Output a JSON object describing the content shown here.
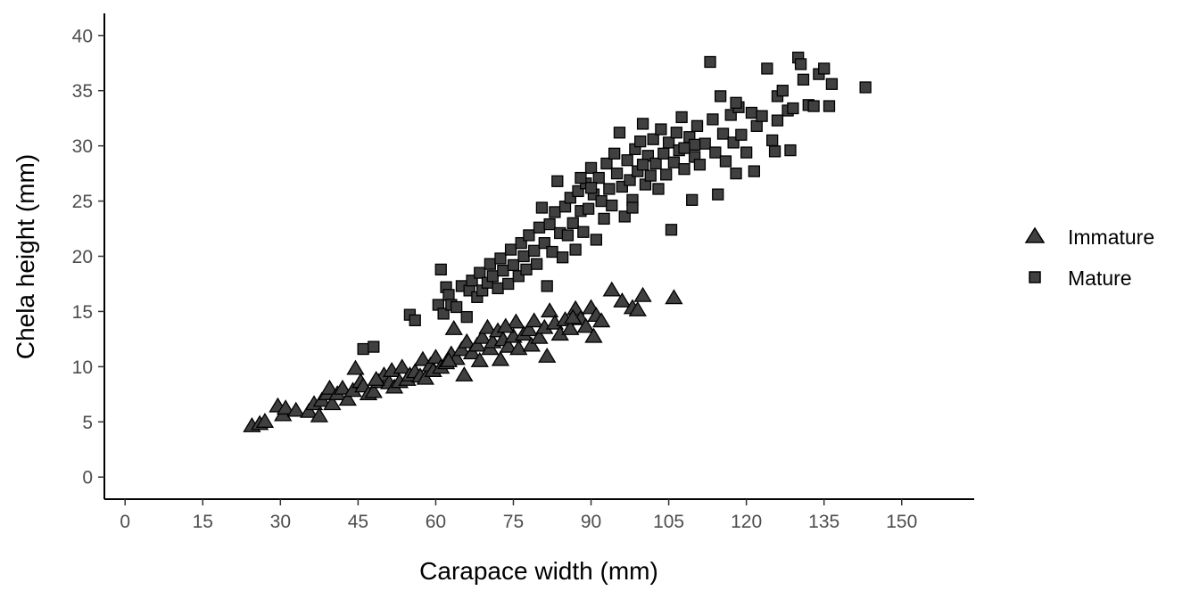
{
  "chart_data": {
    "type": "scatter",
    "title": "",
    "xlabel": "Carapace width (mm)",
    "ylabel": "Chela height (mm)",
    "xlim": [
      -4,
      164
    ],
    "ylim": [
      -2,
      42
    ],
    "x_ticks": [
      "0",
      "15",
      "30",
      "45",
      "60",
      "75",
      "90",
      "105",
      "120",
      "135",
      "150"
    ],
    "y_ticks": [
      "0",
      "5",
      "10",
      "15",
      "20",
      "25",
      "30",
      "35",
      "40"
    ],
    "grid": false,
    "legend_position": "right",
    "colors": {
      "fill": "#404040",
      "stroke": "#000000"
    },
    "series": [
      {
        "name": "Immature",
        "marker": "triangle",
        "points": [
          [
            24.5,
            4.6
          ],
          [
            26,
            4.8
          ],
          [
            27,
            5
          ],
          [
            29.5,
            6.4
          ],
          [
            30.5,
            5.6
          ],
          [
            31,
            6.2
          ],
          [
            33,
            6
          ],
          [
            35.5,
            5.9
          ],
          [
            36.5,
            6.6
          ],
          [
            37.5,
            5.5
          ],
          [
            38,
            6.9
          ],
          [
            39,
            7.5
          ],
          [
            39.5,
            8
          ],
          [
            40,
            6.6
          ],
          [
            41,
            7.5
          ],
          [
            42,
            8
          ],
          [
            43,
            7
          ],
          [
            44,
            7.8
          ],
          [
            44.5,
            9.8
          ],
          [
            45.5,
            8.6
          ],
          [
            46,
            8.2
          ],
          [
            47,
            7.5
          ],
          [
            48,
            7.7
          ],
          [
            49,
            8.6
          ],
          [
            50,
            9.2
          ],
          [
            51,
            8.5
          ],
          [
            51.5,
            9.6
          ],
          [
            52,
            8.1
          ],
          [
            53,
            8.6
          ],
          [
            53.5,
            9.9
          ],
          [
            54.5,
            8.8
          ],
          [
            55,
            9.2
          ],
          [
            56,
            9.5
          ],
          [
            57,
            9.1
          ],
          [
            57.5,
            10.6
          ],
          [
            58,
            8.9
          ],
          [
            59,
            10.1
          ],
          [
            59.5,
            9.6
          ],
          [
            60,
            10.8
          ],
          [
            61,
            9.9
          ],
          [
            62,
            10.3
          ],
          [
            63,
            11.1
          ],
          [
            63.5,
            13.4
          ],
          [
            64,
            10.7
          ],
          [
            65,
            11.5
          ],
          [
            65.5,
            9.2
          ],
          [
            66,
            12.2
          ],
          [
            67,
            11.2
          ],
          [
            68,
            11.9
          ],
          [
            68.5,
            10.5
          ],
          [
            69,
            12.6
          ],
          [
            70,
            13.5
          ],
          [
            70.5,
            11.6
          ],
          [
            71,
            12.2
          ],
          [
            72,
            13.2
          ],
          [
            72.5,
            10.6
          ],
          [
            73,
            12.4
          ],
          [
            74,
            11.8
          ],
          [
            75,
            12.7
          ],
          [
            75.5,
            14
          ],
          [
            76,
            11.6
          ],
          [
            77,
            12.9
          ],
          [
            78,
            13.3
          ],
          [
            78.5,
            11.9
          ],
          [
            79,
            14.1
          ],
          [
            80,
            12.6
          ],
          [
            81,
            13.5
          ],
          [
            81.5,
            10.9
          ],
          [
            82,
            15
          ],
          [
            83,
            13.9
          ],
          [
            84,
            12.9
          ],
          [
            85,
            14.2
          ],
          [
            86,
            13.4
          ],
          [
            87,
            15.2
          ],
          [
            88,
            14.3
          ],
          [
            89,
            13.6
          ],
          [
            90,
            15.3
          ],
          [
            90.5,
            12.7
          ],
          [
            91,
            14.6
          ],
          [
            92,
            14.1
          ],
          [
            94,
            16.9
          ],
          [
            96,
            15.9
          ],
          [
            98,
            15.3
          ],
          [
            99,
            15.1
          ],
          [
            100,
            16.4
          ],
          [
            106,
            16.2
          ],
          [
            48.5,
            8.8
          ],
          [
            62.5,
            10.5
          ],
          [
            73.5,
            13.6
          ],
          [
            86.5,
            14.4
          ]
        ]
      },
      {
        "name": "Mature",
        "marker": "square",
        "points": [
          [
            46,
            11.6
          ],
          [
            48,
            11.8
          ],
          [
            55,
            14.7
          ],
          [
            56,
            14.2
          ],
          [
            60.5,
            15.6
          ],
          [
            61,
            18.8
          ],
          [
            61.5,
            14.8
          ],
          [
            62,
            17.2
          ],
          [
            62.5,
            16.5
          ],
          [
            63,
            15.6
          ],
          [
            64,
            15.4
          ],
          [
            65,
            17.3
          ],
          [
            66,
            14.5
          ],
          [
            66.5,
            16.9
          ],
          [
            67,
            17.8
          ],
          [
            68,
            16.3
          ],
          [
            68.5,
            18.5
          ],
          [
            69,
            16.9
          ],
          [
            70,
            17.6
          ],
          [
            70.5,
            19.3
          ],
          [
            71,
            18.2
          ],
          [
            72,
            17.1
          ],
          [
            72.5,
            19.8
          ],
          [
            73,
            18.7
          ],
          [
            74,
            17.5
          ],
          [
            74.5,
            20.6
          ],
          [
            75,
            19.2
          ],
          [
            76,
            18.2
          ],
          [
            76.5,
            21.2
          ],
          [
            77,
            20
          ],
          [
            77.5,
            18.8
          ],
          [
            78,
            21.9
          ],
          [
            79,
            20.5
          ],
          [
            79.5,
            19.3
          ],
          [
            80,
            22.6
          ],
          [
            80.5,
            24.4
          ],
          [
            81,
            21.2
          ],
          [
            81.5,
            17.3
          ],
          [
            82,
            22.9
          ],
          [
            82.5,
            20.4
          ],
          [
            83,
            24
          ],
          [
            83.5,
            26.8
          ],
          [
            84,
            22.1
          ],
          [
            84.5,
            19.9
          ],
          [
            85,
            24.5
          ],
          [
            85.5,
            21.9
          ],
          [
            86,
            25.3
          ],
          [
            86.5,
            23
          ],
          [
            87,
            20.6
          ],
          [
            87.5,
            25.9
          ],
          [
            88,
            24.1
          ],
          [
            88.5,
            22.2
          ],
          [
            89,
            26.6
          ],
          [
            89.5,
            24.3
          ],
          [
            90,
            28
          ],
          [
            90.5,
            25.6
          ],
          [
            91,
            21.5
          ],
          [
            91.5,
            27.1
          ],
          [
            92,
            25
          ],
          [
            92.5,
            23.4
          ],
          [
            93,
            28.4
          ],
          [
            93.5,
            26.1
          ],
          [
            94,
            24.6
          ],
          [
            94.5,
            29.3
          ],
          [
            95,
            27.5
          ],
          [
            95.5,
            31.2
          ],
          [
            96,
            26.3
          ],
          [
            96.5,
            23.6
          ],
          [
            97,
            28.7
          ],
          [
            97.5,
            26.9
          ],
          [
            98,
            25.1
          ],
          [
            98.5,
            29.7
          ],
          [
            99,
            27.7
          ],
          [
            99.5,
            30.4
          ],
          [
            100,
            32
          ],
          [
            100.5,
            26.5
          ],
          [
            101,
            29.1
          ],
          [
            101.5,
            27.3
          ],
          [
            102,
            30.6
          ],
          [
            102.5,
            28.4
          ],
          [
            103,
            26.1
          ],
          [
            103.5,
            31.5
          ],
          [
            104,
            29.3
          ],
          [
            104.5,
            27.4
          ],
          [
            105,
            30.3
          ],
          [
            105.5,
            22.4
          ],
          [
            106,
            28.5
          ],
          [
            106.5,
            31.2
          ],
          [
            107,
            29.6
          ],
          [
            107.5,
            32.6
          ],
          [
            108,
            27.9
          ],
          [
            109,
            30.8
          ],
          [
            109.5,
            25.1
          ],
          [
            110,
            29
          ],
          [
            110.5,
            31.8
          ],
          [
            111,
            28.3
          ],
          [
            112,
            30.2
          ],
          [
            113,
            37.6
          ],
          [
            113.5,
            32.4
          ],
          [
            114,
            29.4
          ],
          [
            114.5,
            25.6
          ],
          [
            115,
            34.5
          ],
          [
            115.5,
            31.1
          ],
          [
            116,
            28.6
          ],
          [
            117,
            32.8
          ],
          [
            117.5,
            30.3
          ],
          [
            118,
            27.5
          ],
          [
            118.5,
            33.5
          ],
          [
            119,
            31
          ],
          [
            120,
            29.4
          ],
          [
            121,
            33
          ],
          [
            121.5,
            27.7
          ],
          [
            122,
            31.8
          ],
          [
            123,
            32.7
          ],
          [
            124,
            37
          ],
          [
            125,
            30.5
          ],
          [
            125.5,
            29.5
          ],
          [
            126,
            34.5
          ],
          [
            127,
            35
          ],
          [
            128,
            33.2
          ],
          [
            128.5,
            29.6
          ],
          [
            129,
            33.4
          ],
          [
            130,
            38
          ],
          [
            130.5,
            37.4
          ],
          [
            131,
            36
          ],
          [
            132,
            33.7
          ],
          [
            133,
            33.6
          ],
          [
            134,
            36.5
          ],
          [
            135,
            37
          ],
          [
            136,
            33.6
          ],
          [
            136.5,
            35.6
          ],
          [
            143,
            35.3
          ],
          [
            90,
            26.2
          ],
          [
            100,
            28.3
          ],
          [
            110,
            30.1
          ],
          [
            88,
            27.1
          ],
          [
            98,
            24.4
          ],
          [
            108,
            29.8
          ],
          [
            118,
            33.9
          ],
          [
            126,
            32.3
          ]
        ]
      }
    ]
  }
}
